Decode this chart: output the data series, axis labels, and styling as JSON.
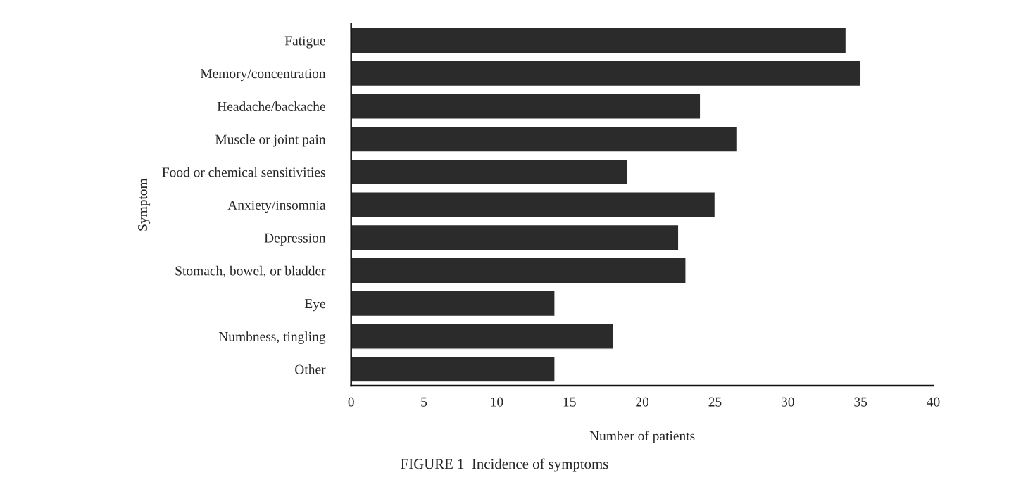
{
  "chart_data": {
    "type": "bar",
    "orientation": "horizontal",
    "title": "FIGURE 1  Incidence of symptoms",
    "xlabel": "Number of patients",
    "ylabel": "Symptom",
    "categories": [
      "Fatigue",
      "Memory/concentration",
      "Headache/backache",
      "Muscle or joint pain",
      "Food or chemical sensitivities",
      "Anxiety/insomnia",
      "Depression",
      "Stomach, bowel, or bladder",
      "Eye",
      "Numbness, tingling",
      "Other"
    ],
    "values": [
      34,
      35,
      24,
      26.5,
      19,
      25,
      22.5,
      23,
      14,
      18,
      14
    ],
    "color": "#2b2b2b",
    "xlim": [
      0,
      40
    ],
    "xticks": [
      0,
      5,
      10,
      15,
      20,
      25,
      30,
      35,
      40
    ],
    "grid": false
  }
}
